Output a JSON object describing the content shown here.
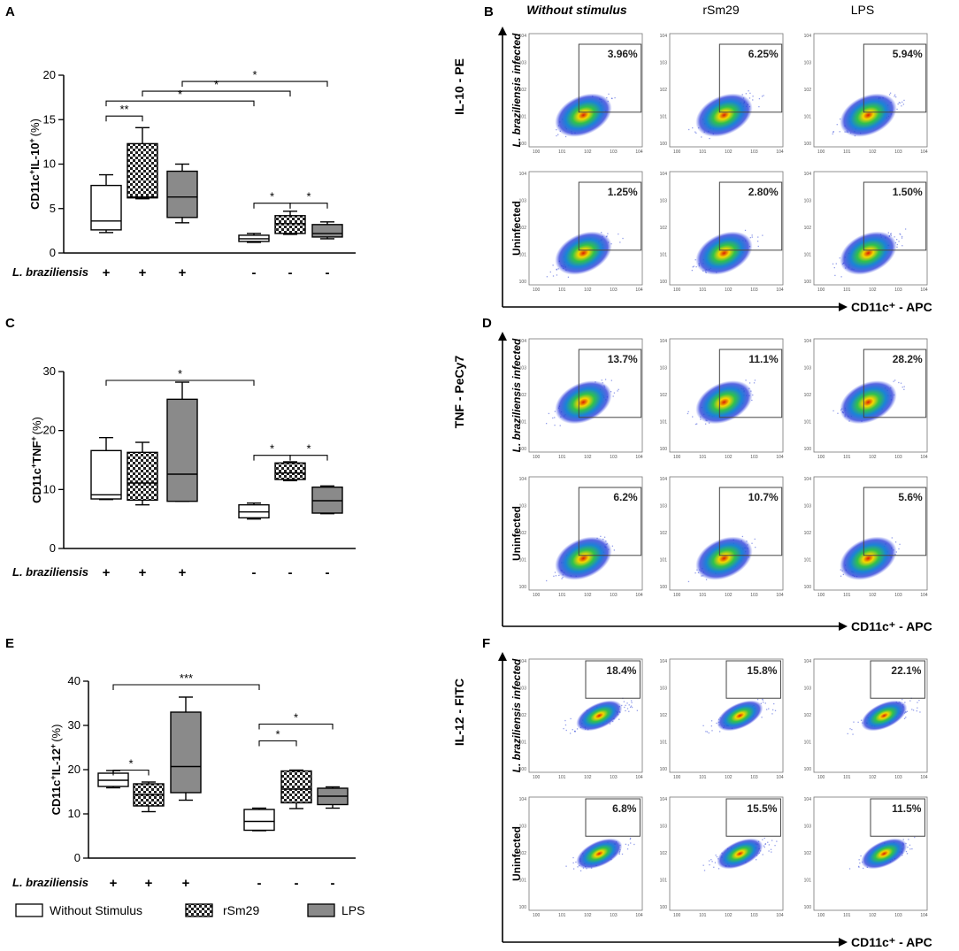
{
  "panel_labels": [
    "A",
    "B",
    "C",
    "D",
    "E",
    "F"
  ],
  "legend": [
    {
      "label": "Without Stimulus",
      "pattern": "white"
    },
    {
      "label": "rSm29",
      "pattern": "checker"
    },
    {
      "label": "LPS",
      "pattern": "gray"
    }
  ],
  "infection_label": "L. braziliensis",
  "chart_data": [
    {
      "id": "A",
      "type": "box",
      "ylabel_main": "CD11c",
      "ylabel_sup1": "+",
      "ylabel_mid": "IL-10",
      "ylabel_sup2": "+",
      "ylabel_tail": "(%)",
      "ylim": [
        0,
        20
      ],
      "yticks": [
        0,
        5,
        10,
        15,
        20
      ],
      "categories": [
        "+",
        "+",
        "+",
        "-",
        "-",
        "-"
      ],
      "groups": [
        {
          "pattern": "white",
          "min": 2.3,
          "q1": 2.6,
          "median": 3.6,
          "q3": 7.6,
          "max": 8.8
        },
        {
          "pattern": "checker",
          "min": 6.1,
          "q1": 6.2,
          "median": 6.3,
          "q3": 12.3,
          "max": 14.1
        },
        {
          "pattern": "gray",
          "min": 3.4,
          "q1": 4.0,
          "median": 6.3,
          "q3": 9.2,
          "max": 10.0
        },
        {
          "pattern": "white",
          "min": 1.2,
          "q1": 1.3,
          "median": 1.6,
          "q3": 2.0,
          "max": 2.2
        },
        {
          "pattern": "checker",
          "min": 2.1,
          "q1": 2.2,
          "median": 3.3,
          "q3": 4.2,
          "max": 4.7
        },
        {
          "pattern": "gray",
          "min": 1.6,
          "q1": 1.8,
          "median": 2.2,
          "q3": 3.2,
          "max": 3.5
        }
      ],
      "significance": [
        {
          "from": 0,
          "to": 1,
          "label": "**",
          "y": 15.4
        },
        {
          "from": 0,
          "to": 3,
          "label": "*",
          "y": 17.1
        },
        {
          "from": 1,
          "to": 4,
          "label": "*",
          "y": 18.2
        },
        {
          "from": 2,
          "to": 5,
          "label": "*",
          "y": 19.3
        },
        {
          "from": 3,
          "to": 4,
          "label": "*",
          "y": 5.6
        },
        {
          "from": 4,
          "to": 5,
          "label": "*",
          "y": 5.6
        }
      ]
    },
    {
      "id": "C",
      "type": "box",
      "ylabel_main": "CD11c",
      "ylabel_sup1": "+",
      "ylabel_mid": "TNF",
      "ylabel_sup2": "+",
      "ylabel_tail": "(%)",
      "ylim": [
        0,
        30
      ],
      "yticks": [
        0,
        10,
        20,
        30
      ],
      "categories": [
        "+",
        "+",
        "+",
        "-",
        "-",
        "-"
      ],
      "groups": [
        {
          "pattern": "white",
          "min": 8.3,
          "q1": 8.4,
          "median": 9.1,
          "q3": 16.6,
          "max": 18.8
        },
        {
          "pattern": "checker",
          "min": 7.4,
          "q1": 8.2,
          "median": 11.1,
          "q3": 16.3,
          "max": 18.0
        },
        {
          "pattern": "gray",
          "min": 8.0,
          "q1": 8.0,
          "median": 12.6,
          "q3": 25.3,
          "max": 28.2
        },
        {
          "pattern": "white",
          "min": 5.0,
          "q1": 5.2,
          "median": 6.2,
          "q3": 7.4,
          "max": 7.7
        },
        {
          "pattern": "checker",
          "min": 11.5,
          "q1": 11.7,
          "median": 12.8,
          "q3": 14.5,
          "max": 14.7
        },
        {
          "pattern": "gray",
          "min": 5.9,
          "q1": 6.0,
          "median": 8.1,
          "q3": 10.4,
          "max": 10.6
        }
      ],
      "significance": [
        {
          "from": 0,
          "to": 3,
          "label": "*",
          "y": 28.5
        },
        {
          "from": 3,
          "to": 4,
          "label": "*",
          "y": 15.8
        },
        {
          "from": 4,
          "to": 5,
          "label": "*",
          "y": 15.8
        }
      ]
    },
    {
      "id": "E",
      "type": "box",
      "ylabel_main": "CD11c",
      "ylabel_sup1": "+",
      "ylabel_mid": "IL-12",
      "ylabel_sup2": "+",
      "ylabel_tail": "(%)",
      "ylim": [
        0,
        40
      ],
      "yticks": [
        0,
        10,
        20,
        30,
        40
      ],
      "categories": [
        "+",
        "+",
        "+",
        "-",
        "-",
        "-"
      ],
      "groups": [
        {
          "pattern": "white",
          "min": 15.9,
          "q1": 16.2,
          "median": 17.6,
          "q3": 19.2,
          "max": 19.8
        },
        {
          "pattern": "checker",
          "min": 10.5,
          "q1": 11.8,
          "median": 14.3,
          "q3": 16.8,
          "max": 17.2
        },
        {
          "pattern": "gray",
          "min": 13.1,
          "q1": 14.8,
          "median": 20.7,
          "q3": 33.0,
          "max": 36.4
        },
        {
          "pattern": "white",
          "min": 6.2,
          "q1": 6.3,
          "median": 8.3,
          "q3": 11.0,
          "max": 11.3
        },
        {
          "pattern": "checker",
          "min": 11.2,
          "q1": 12.5,
          "median": 15.6,
          "q3": 19.7,
          "max": 19.9
        },
        {
          "pattern": "gray",
          "min": 11.3,
          "q1": 12.1,
          "median": 14.0,
          "q3": 15.8,
          "max": 16.1
        }
      ],
      "significance": [
        {
          "from": 0,
          "to": 3,
          "label": "***",
          "y": 39.2
        },
        {
          "from": 0,
          "to": 1,
          "label": "*",
          "y": 19.9
        },
        {
          "from": 3,
          "to": 4,
          "label": "*",
          "y": 26.5
        },
        {
          "from": 3,
          "to": 5,
          "label": "*",
          "y": 30.3
        }
      ]
    }
  ],
  "flow": {
    "columns": [
      "Without stimulus",
      "rSm29",
      "LPS"
    ],
    "rows": [
      "L. braziliensis infected",
      "Uninfected"
    ],
    "x_axis": "CD11c⁺ - APC",
    "panels": [
      {
        "id": "B",
        "y_axis": "IL-10 - PE",
        "gate": "large",
        "values": [
          [
            "3.96%",
            "6.25%",
            "5.94%"
          ],
          [
            "1.25%",
            "2.80%",
            "1.50%"
          ]
        ]
      },
      {
        "id": "D",
        "y_axis": "TNF - PeCy7",
        "gate": "large",
        "values": [
          [
            "13.7%",
            "11.1%",
            "28.2%"
          ],
          [
            "6.2%",
            "10.7%",
            "5.6%"
          ]
        ]
      },
      {
        "id": "F",
        "y_axis": "IL-12 - FITC",
        "gate": "small",
        "values": [
          [
            "18.4%",
            "15.8%",
            "22.1%"
          ],
          [
            "6.8%",
            "15.5%",
            "11.5%"
          ]
        ]
      }
    ]
  }
}
